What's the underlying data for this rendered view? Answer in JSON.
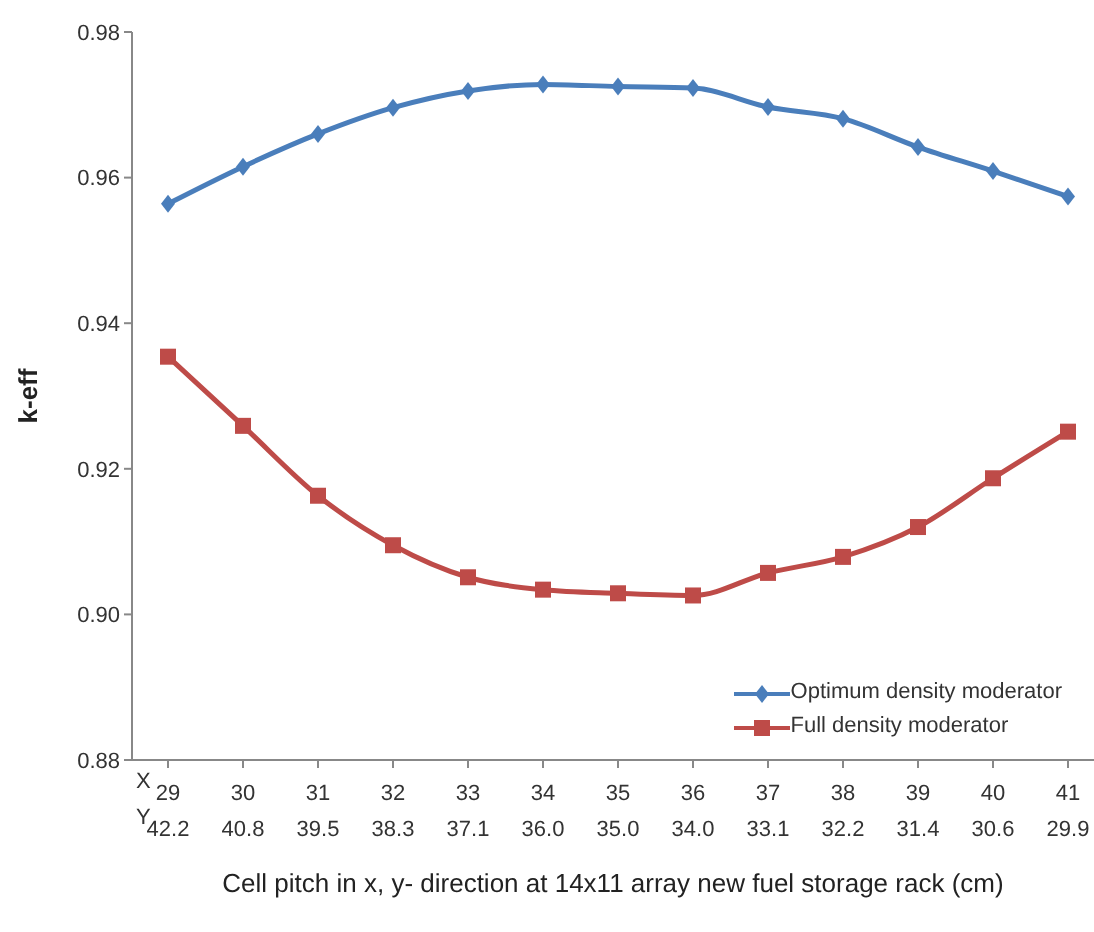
{
  "chart_data": {
    "type": "line",
    "xlabel": "Cell pitch in x, y- direction at 14x11 array new fuel storage rack (cm)",
    "ylabel": "k-eff",
    "categories": [
      "29\n42.2",
      "30\n40.8",
      "31\n39.5",
      "32\n38.3",
      "33\n37.1",
      "34\n36.0",
      "35\n35.0",
      "36\n34.0",
      "37\n33.1",
      "38\n32.2",
      "39\n31.4",
      "40\n30.6",
      "41\n29.9"
    ],
    "annotations": [
      "X",
      "Y"
    ],
    "series": [
      {
        "name": "Optimum density moderator",
        "color": "#4a7ebb",
        "marker": "diamond",
        "values": [
          0.9564,
          0.9615,
          0.966,
          0.9696,
          0.9719,
          0.9728,
          0.9725,
          0.9723,
          0.9697,
          0.9681,
          0.9642,
          0.9609,
          0.9574
        ]
      },
      {
        "name": "Full density moderator",
        "color": "#be4b48",
        "marker": "square",
        "values": [
          0.9354,
          0.9259,
          0.9163,
          0.9095,
          0.9051,
          0.9034,
          0.9029,
          0.9026,
          0.9057,
          0.9079,
          0.912,
          0.9187,
          0.9251
        ]
      }
    ],
    "ylim": [
      0.88,
      0.98
    ],
    "yticks": [
      0.88,
      {
        "value": 0.9,
        "label": "0.90"
      },
      0.92,
      0.94,
      0.96,
      0.98
    ],
    "grid": false,
    "legend": "bottom right",
    "line_style": "solid"
  }
}
